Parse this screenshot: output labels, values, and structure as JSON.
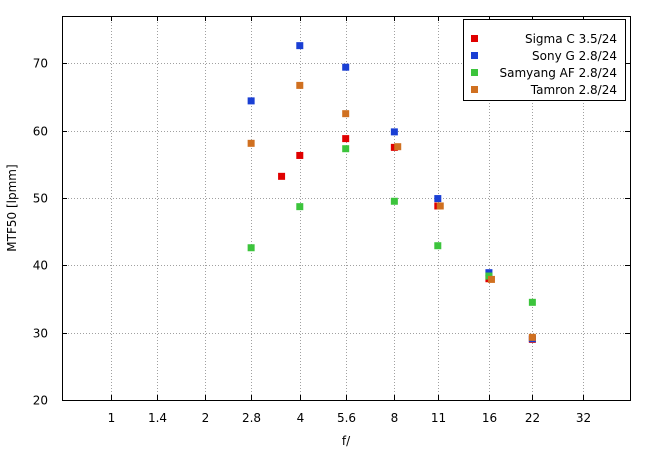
{
  "chart_data": {
    "type": "scatter",
    "title": "",
    "xlabel": "f/",
    "ylabel": "MTF50 [lpmm]",
    "x_scale": "log2",
    "xlim": [
      0.7,
      45
    ],
    "ylim": [
      20,
      77
    ],
    "xticks": [
      {
        "value": 1,
        "label": "1"
      },
      {
        "value": 1.4,
        "label": "1.4"
      },
      {
        "value": 2,
        "label": "2"
      },
      {
        "value": 2.8,
        "label": "2.8"
      },
      {
        "value": 4,
        "label": "4"
      },
      {
        "value": 5.6,
        "label": "5.6"
      },
      {
        "value": 8,
        "label": "8"
      },
      {
        "value": 11,
        "label": "11"
      },
      {
        "value": 16,
        "label": "16"
      },
      {
        "value": 22,
        "label": "22"
      },
      {
        "value": 32,
        "label": "32"
      }
    ],
    "yticks": [
      {
        "value": 20,
        "label": "20"
      },
      {
        "value": 30,
        "label": "30"
      },
      {
        "value": 40,
        "label": "40"
      },
      {
        "value": 50,
        "label": "50"
      },
      {
        "value": 60,
        "label": "60"
      },
      {
        "value": 70,
        "label": "70"
      }
    ],
    "grid": true,
    "legend_position": "top-right",
    "series": [
      {
        "name": "Sigma C 3.5/24",
        "color": "#e00000",
        "points": [
          {
            "x": 3.5,
            "y": 53.2
          },
          {
            "x": 4,
            "y": 56.3
          },
          {
            "x": 5.6,
            "y": 58.8
          },
          {
            "x": 8,
            "y": 57.5
          },
          {
            "x": 11,
            "y": 48.8
          },
          {
            "x": 16,
            "y": 38.0
          },
          {
            "x": 22,
            "y": 29.0
          }
        ]
      },
      {
        "name": "Sony G 2.8/24",
        "color": "#1a3fd4",
        "points": [
          {
            "x": 2.8,
            "y": 64.4
          },
          {
            "x": 4,
            "y": 72.6
          },
          {
            "x": 5.6,
            "y": 69.4
          },
          {
            "x": 8,
            "y": 59.8
          },
          {
            "x": 11,
            "y": 49.9
          },
          {
            "x": 16,
            "y": 38.9
          },
          {
            "x": 22,
            "y": 29.1
          }
        ]
      },
      {
        "name": "Samyang AF 2.8/24",
        "color": "#3cc43c",
        "points": [
          {
            "x": 2.8,
            "y": 42.6
          },
          {
            "x": 4,
            "y": 48.7
          },
          {
            "x": 5.6,
            "y": 57.3
          },
          {
            "x": 8,
            "y": 49.5
          },
          {
            "x": 11,
            "y": 42.9
          },
          {
            "x": 16,
            "y": 38.4
          },
          {
            "x": 22,
            "y": 34.5
          }
        ]
      },
      {
        "name": "Tamron 2.8/24",
        "color": "#d07020",
        "points": [
          {
            "x": 2.8,
            "y": 58.1
          },
          {
            "x": 4,
            "y": 66.7
          },
          {
            "x": 5.6,
            "y": 62.5
          },
          {
            "x": 8.2,
            "y": 57.6
          },
          {
            "x": 11.2,
            "y": 48.8
          },
          {
            "x": 16.3,
            "y": 37.9
          },
          {
            "x": 22,
            "y": 29.3
          }
        ]
      }
    ]
  }
}
